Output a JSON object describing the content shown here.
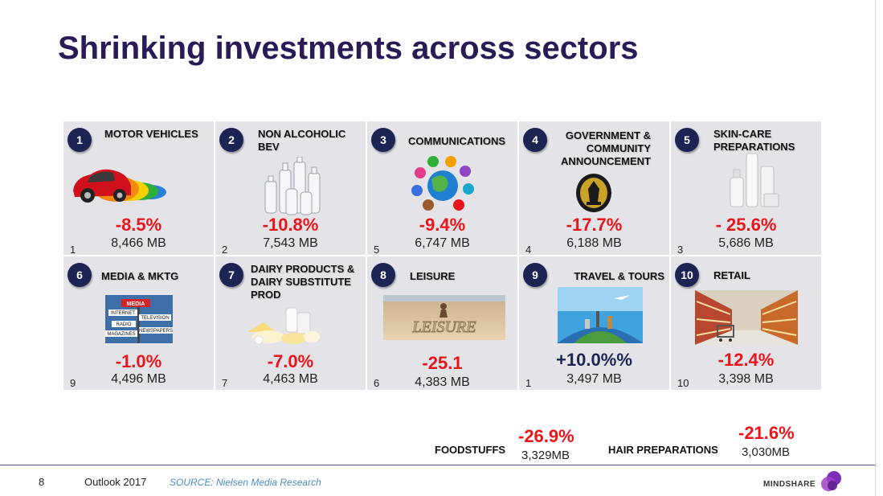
{
  "title": "Shrinking investments across sectors",
  "tiles": [
    {
      "num": "1",
      "name": "MOTOR VEHICLES",
      "pct": "-8.5%",
      "spend": "8,466 MB",
      "rank": "1",
      "icon": "cars-icon"
    },
    {
      "num": "2",
      "name": "NON ALCOHOLIC BEV",
      "pct": "-10.8%",
      "spend": "7,543 MB",
      "rank": "2",
      "icon": "bottles-icon"
    },
    {
      "num": "3",
      "name": "COMMUNICATIONS",
      "pct": "-9.4%",
      "spend": "6,747 MB",
      "rank": "5",
      "icon": "globe-apps-icon"
    },
    {
      "num": "4",
      "name": "GOVERNMENT & COMMUNITY ANNOUNCEMENT",
      "pct": "-17.7%",
      "spend": "6,188 MB",
      "rank": "4",
      "icon": "government-seal-icon"
    },
    {
      "num": "5",
      "name": "SKIN-CARE PREPARATIONS",
      "pct": "- 25.6%",
      "spend": "5,686 MB",
      "rank": "3",
      "icon": "skincare-bottles-icon"
    },
    {
      "num": "6",
      "name": "MEDIA & MKTG",
      "pct": "-1.0%",
      "spend": "4,496 MB",
      "rank": "9",
      "icon": "media-signpost-icon"
    },
    {
      "num": "7",
      "name": "DAIRY PRODUCTS & DAIRY SUBSTITUTE PROD",
      "pct": "-7.0%",
      "spend": "4,463 MB",
      "rank": "7",
      "icon": "dairy-products-icon"
    },
    {
      "num": "8",
      "name": "LEISURE",
      "pct": "-25.1",
      "spend": "4,383 MB",
      "rank": "6",
      "icon": "beach-leisure-icon"
    },
    {
      "num": "9",
      "name": "TRAVEL & TOURS",
      "pct": "+10.0%%",
      "spend": "3,497 MB",
      "rank": "1",
      "icon": "travel-globe-icon"
    },
    {
      "num": "10",
      "name": "RETAIL",
      "pct": "-12.4%",
      "spend": "3,398 MB",
      "rank": "10",
      "icon": "supermarket-aisle-icon"
    }
  ],
  "media_sign": {
    "media": "MEDIA",
    "internet": "INTERNET",
    "television": "TELEVISION",
    "radio": "RADIO",
    "magazines": "MAGAZINES",
    "newspapers": "NEWSPAPERS"
  },
  "leisure_word": "LEISURE",
  "extras": [
    {
      "label": "FOODSTUFFS",
      "pct": "-26.9%",
      "spend": "3,329MB"
    },
    {
      "label": "HAIR PREPARATIONS",
      "pct": "-21.6%",
      "spend": "3,030MB"
    }
  ],
  "footer": {
    "page": "8",
    "outlook": "Outlook 2017",
    "source": "SOURCE: Nielsen Media Research",
    "brand": "MINDSHARE"
  },
  "colors": {
    "title": "#2a1b56",
    "negative": "#e8151b",
    "positive": "#1c2454",
    "badge": "#1c2454",
    "tile_bg": "#e4e4e8",
    "source": "#4a8bc2"
  }
}
